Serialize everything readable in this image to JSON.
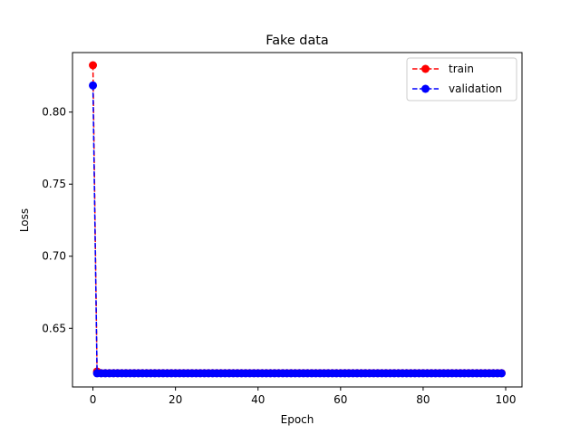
{
  "chart_data": {
    "type": "line",
    "title": "Fake data",
    "xlabel": "Epoch",
    "ylabel": "Loss",
    "xlim": [
      -4.95,
      103.95
    ],
    "ylim": [
      0.6093,
      0.8413
    ],
    "xticks": [
      0,
      20,
      40,
      60,
      80,
      100
    ],
    "xtick_labels": [
      "0",
      "20",
      "40",
      "60",
      "80",
      "100"
    ],
    "yticks": [
      0.65,
      0.7,
      0.75,
      0.8
    ],
    "ytick_labels": [
      "0.65",
      "0.70",
      "0.75",
      "0.80"
    ],
    "grid": false,
    "legend_position": "top-right",
    "x": [
      0,
      1,
      2,
      3,
      4,
      5,
      6,
      7,
      8,
      9,
      10,
      11,
      12,
      13,
      14,
      15,
      16,
      17,
      18,
      19,
      20,
      21,
      22,
      23,
      24,
      25,
      26,
      27,
      28,
      29,
      30,
      31,
      32,
      33,
      34,
      35,
      36,
      37,
      38,
      39,
      40,
      41,
      42,
      43,
      44,
      45,
      46,
      47,
      48,
      49,
      50,
      51,
      52,
      53,
      54,
      55,
      56,
      57,
      58,
      59,
      60,
      61,
      62,
      63,
      64,
      65,
      66,
      67,
      68,
      69,
      70,
      71,
      72,
      73,
      74,
      75,
      76,
      77,
      78,
      79,
      80,
      81,
      82,
      83,
      84,
      85,
      86,
      87,
      88,
      89,
      90,
      91,
      92,
      93,
      94,
      95,
      96,
      97,
      98,
      99
    ],
    "series": [
      {
        "name": "train",
        "color": "#ff0000",
        "linestyle": "dashed",
        "marker": "circle",
        "values": [
          0.8325,
          0.62,
          0.6189,
          0.6189,
          0.6189,
          0.6189,
          0.6189,
          0.6189,
          0.6189,
          0.6189,
          0.6189,
          0.6189,
          0.6189,
          0.6189,
          0.6189,
          0.6189,
          0.6189,
          0.6189,
          0.6189,
          0.6189,
          0.6189,
          0.6189,
          0.6189,
          0.6189,
          0.6189,
          0.6189,
          0.6189,
          0.6189,
          0.6189,
          0.6189,
          0.6189,
          0.6189,
          0.6189,
          0.6189,
          0.6189,
          0.6189,
          0.6189,
          0.6189,
          0.6189,
          0.6189,
          0.6189,
          0.6189,
          0.6189,
          0.6189,
          0.6189,
          0.6189,
          0.6189,
          0.6189,
          0.6189,
          0.6189,
          0.6189,
          0.6189,
          0.6189,
          0.6189,
          0.6189,
          0.6189,
          0.6189,
          0.6189,
          0.6189,
          0.6189,
          0.6189,
          0.6189,
          0.6189,
          0.6189,
          0.6189,
          0.6189,
          0.6189,
          0.6189,
          0.6189,
          0.6189,
          0.6189,
          0.6189,
          0.6189,
          0.6189,
          0.6189,
          0.6189,
          0.6189,
          0.6189,
          0.6189,
          0.6189,
          0.6189,
          0.6189,
          0.6189,
          0.6189,
          0.6189,
          0.6189,
          0.6189,
          0.6189,
          0.6189,
          0.6189,
          0.6189,
          0.6189,
          0.6189,
          0.6189,
          0.6189,
          0.6189,
          0.6189,
          0.6189,
          0.6189,
          0.6189
        ]
      },
      {
        "name": "validation",
        "color": "#0000ff",
        "linestyle": "dashed",
        "marker": "circle",
        "values": [
          0.8185,
          0.6188,
          0.6188,
          0.6188,
          0.6188,
          0.6188,
          0.6188,
          0.6188,
          0.6188,
          0.6188,
          0.6188,
          0.6188,
          0.6188,
          0.6188,
          0.6188,
          0.6188,
          0.6188,
          0.6188,
          0.6188,
          0.6188,
          0.6188,
          0.6188,
          0.6188,
          0.6188,
          0.6188,
          0.6188,
          0.6188,
          0.6188,
          0.6188,
          0.6188,
          0.6188,
          0.6188,
          0.6188,
          0.6188,
          0.6188,
          0.6188,
          0.6188,
          0.6188,
          0.6188,
          0.6188,
          0.6188,
          0.6188,
          0.6188,
          0.6188,
          0.6188,
          0.6188,
          0.6188,
          0.6188,
          0.6188,
          0.6188,
          0.6188,
          0.6188,
          0.6188,
          0.6188,
          0.6188,
          0.6188,
          0.6188,
          0.6188,
          0.6188,
          0.6188,
          0.6188,
          0.6188,
          0.6188,
          0.6188,
          0.6188,
          0.6188,
          0.6188,
          0.6188,
          0.6188,
          0.6188,
          0.6188,
          0.6188,
          0.6188,
          0.6188,
          0.6188,
          0.6188,
          0.6188,
          0.6188,
          0.6188,
          0.6188,
          0.6188,
          0.6188,
          0.6188,
          0.6188,
          0.6188,
          0.6188,
          0.6188,
          0.6188,
          0.6188,
          0.6188,
          0.6188,
          0.6188,
          0.6188,
          0.6188,
          0.6188,
          0.6188,
          0.6188,
          0.6188,
          0.6188,
          0.6188
        ]
      }
    ]
  }
}
